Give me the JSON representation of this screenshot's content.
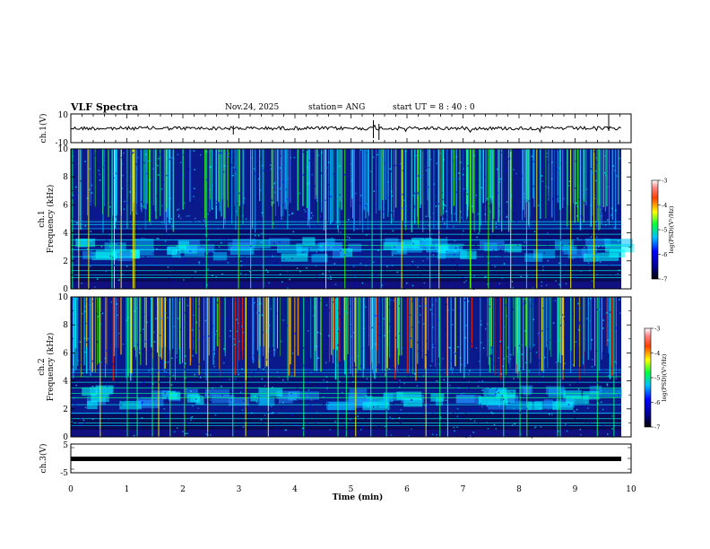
{
  "header": {
    "title": "VLF Spectra",
    "date": "Nov.24, 2025",
    "station": "station= ANG",
    "start": "start UT =  8 : 40 : 0"
  },
  "chart_data": [
    {
      "type": "line",
      "name": "ch.1 waveform",
      "ylabel": "ch.1(V)",
      "ylim": [
        -10,
        10
      ],
      "ytick_labels": [
        "10",
        "-10"
      ],
      "xlim": [
        0,
        10
      ]
    },
    {
      "type": "heatmap",
      "name": "ch.1 spectrogram",
      "ylabel": "ch.1 Frequency (kHz)",
      "ylabel_line1": "ch.1",
      "ylabel_line2": "Frequency (kHz)",
      "ylim": [
        0,
        10
      ],
      "yticks": [
        0,
        2,
        4,
        6,
        8,
        10
      ],
      "xlim": [
        0,
        10
      ],
      "colorbar": {
        "label": "log(PSD)(V²/Hz)",
        "range": [
          -7,
          -3
        ],
        "ticks": [
          "-3",
          "-4",
          "-5",
          "-6",
          "-7"
        ]
      }
    },
    {
      "type": "heatmap",
      "name": "ch.2 spectrogram",
      "ylabel": "ch.2 Frequency (kHz)",
      "ylabel_line1": "ch.2",
      "ylabel_line2": "Frequency (kHz)",
      "ylim": [
        0,
        10
      ],
      "yticks": [
        0,
        2,
        4,
        6,
        8,
        10
      ],
      "xlim": [
        0,
        10
      ],
      "colorbar": {
        "label": "log(PSD)(V²/Hz)",
        "range": [
          -7,
          -3
        ],
        "ticks": [
          "-3",
          "-4",
          "-5",
          "-6",
          "-7"
        ]
      }
    },
    {
      "type": "line",
      "name": "ch.3 waveform",
      "ylabel": "ch.3(V)",
      "ylim": [
        -5,
        5
      ],
      "ytick_labels": [
        "5",
        "-5"
      ],
      "xlim": [
        0,
        10
      ]
    }
  ],
  "xaxis": {
    "label": "Time (min)",
    "ticks": [
      0,
      1,
      2,
      3,
      4,
      5,
      6,
      7,
      8,
      9,
      10
    ]
  }
}
